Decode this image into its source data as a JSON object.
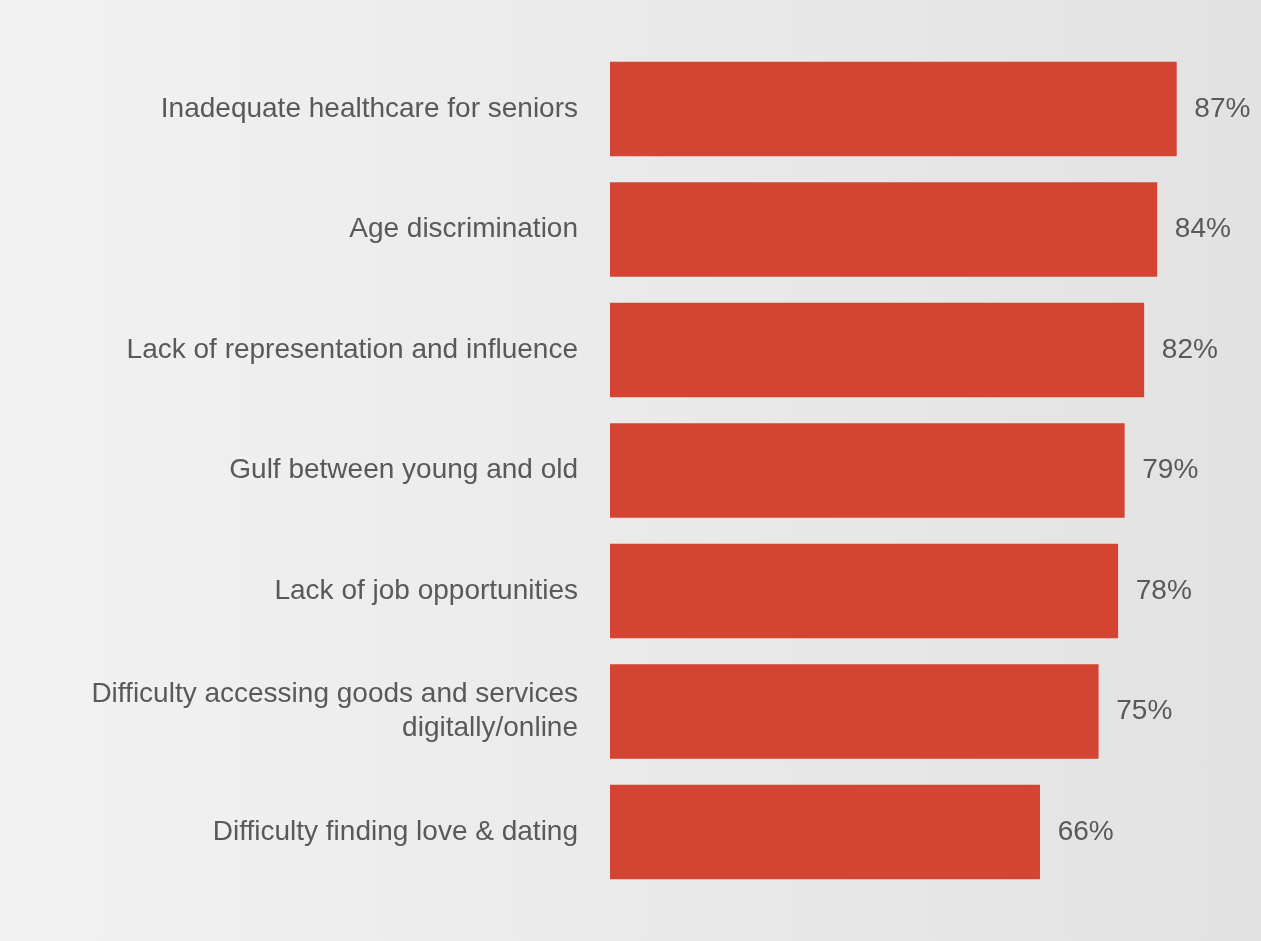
{
  "chart_data": {
    "type": "bar",
    "orientation": "horizontal",
    "categories": [
      "Inadequate healthcare for seniors",
      "Age discrimination",
      "Lack of representation and influence",
      "Gulf between young and old",
      "Lack of job opportunities",
      "Difficulty accessing goods and services\ndigitally/online",
      "Difficulty finding love & dating"
    ],
    "values": [
      87,
      84,
      82,
      79,
      78,
      75,
      66
    ],
    "value_labels": [
      "87%",
      "84%",
      "82%",
      "79%",
      "78%",
      "75%",
      "66%"
    ],
    "color": "#d34432",
    "xlim": [
      0,
      100
    ],
    "grid": false,
    "legend": false
  }
}
